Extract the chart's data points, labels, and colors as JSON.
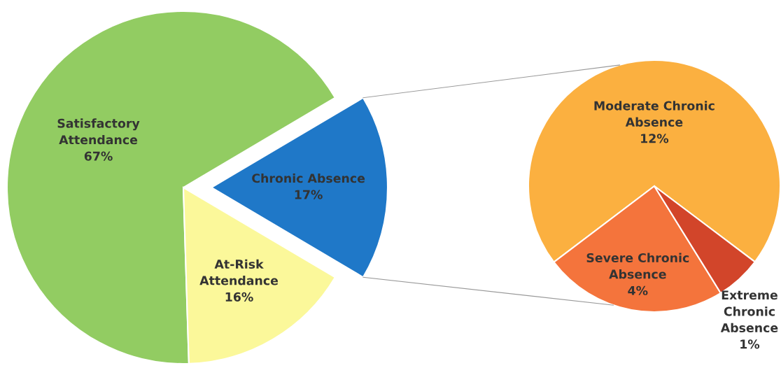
{
  "chart_data": [
    {
      "type": "pie",
      "categories": [
        "Satisfactory\nAttendance",
        "At-Risk\nAttendance",
        "Chronic Absence"
      ],
      "values": [
        67,
        16,
        17
      ],
      "value_labels": [
        "67%",
        "16%",
        "17%"
      ],
      "colors": [
        "#92cc62",
        "#fbf89a",
        "#1f78c8"
      ]
    },
    {
      "type": "pie",
      "categories": [
        "Moderate Chronic\nAbsence",
        "Severe Chronic\nAbsence",
        "Extreme\nChronic\nAbsence"
      ],
      "values": [
        12,
        4,
        1
      ],
      "value_labels": [
        "12%",
        "4%",
        "1%"
      ],
      "colors": [
        "#fbb040",
        "#f4743c",
        "#d2452a"
      ]
    }
  ]
}
